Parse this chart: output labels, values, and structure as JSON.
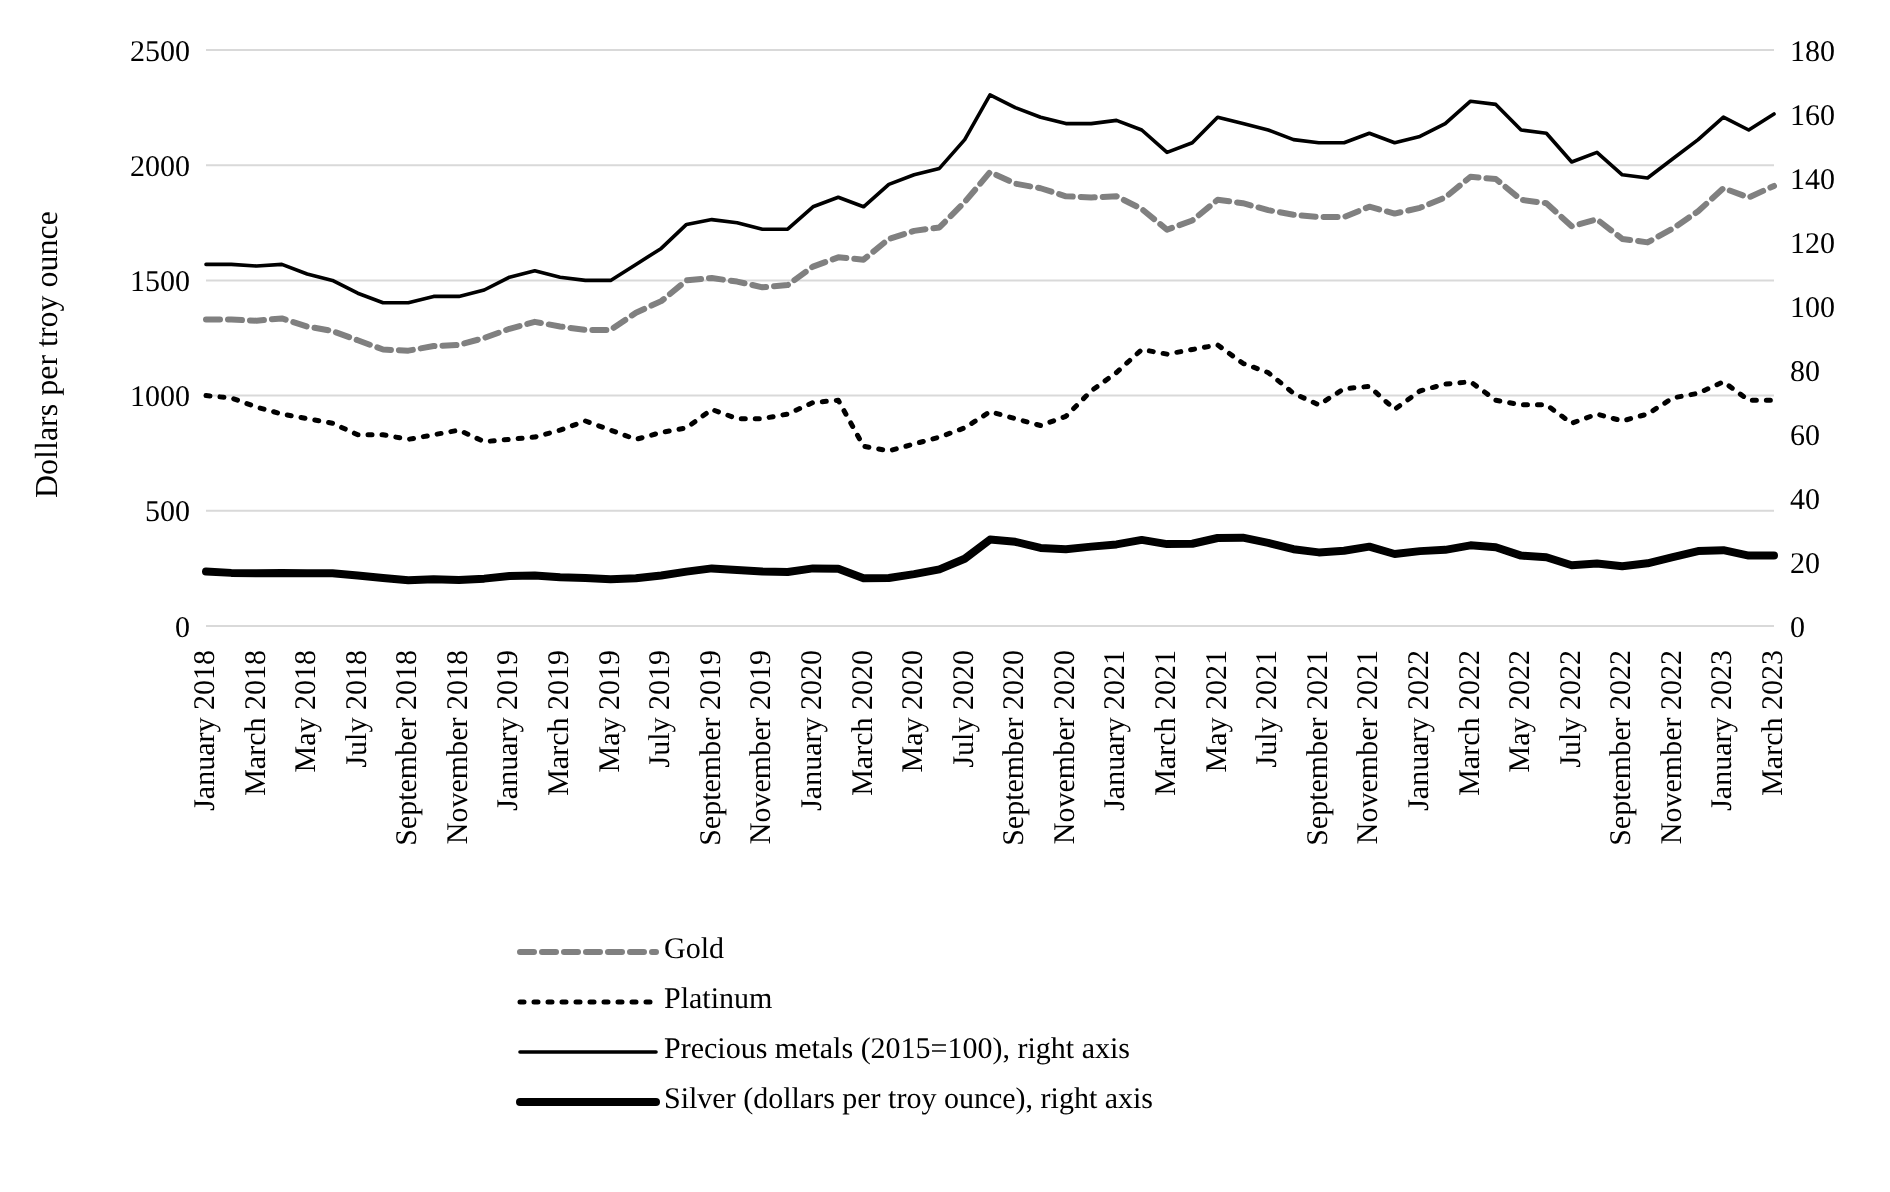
{
  "chart_data": {
    "type": "line",
    "ylabel": "Dollars per troy ounce",
    "categories": [
      "January 2018",
      null,
      "March 2018",
      null,
      "May 2018",
      null,
      "July 2018",
      null,
      "September 2018",
      null,
      "November 2018",
      null,
      "January 2019",
      null,
      "March 2019",
      null,
      "May 2019",
      null,
      "July 2019",
      null,
      "September 2019",
      null,
      "November 2019",
      null,
      "January 2020",
      null,
      "March 2020",
      null,
      "May 2020",
      null,
      "July 2020",
      null,
      "September 2020",
      null,
      "November 2020",
      null,
      "January 2021",
      null,
      "March 2021",
      null,
      "May 2021",
      null,
      "July 2021",
      null,
      "September 2021",
      null,
      "November 2021",
      null,
      "January 2022",
      null,
      "March 2022",
      null,
      "May 2022",
      null,
      "July 2022",
      null,
      "September 2022",
      null,
      "November 2022",
      null,
      "January 2023",
      null,
      "March 2023"
    ],
    "series": [
      {
        "name": "Gold",
        "color": "#808080",
        "line_style": "dashed",
        "values": [
          1330,
          1330,
          1325,
          1335,
          1300,
          1280,
          1240,
          1200,
          1195,
          1215,
          1220,
          1250,
          1290,
          1320,
          1300,
          1285,
          1285,
          1360,
          1410,
          1500,
          1510,
          1495,
          1470,
          1480,
          1560,
          1600,
          1590,
          1680,
          1715,
          1730,
          1840,
          1970,
          1920,
          1900,
          1865,
          1860,
          1865,
          1810,
          1720,
          1760,
          1850,
          1835,
          1805,
          1785,
          1775,
          1775,
          1820,
          1790,
          1815,
          1860,
          1950,
          1940,
          1850,
          1835,
          1735,
          1765,
          1680,
          1665,
          1725,
          1800,
          1900,
          1860,
          1910
        ]
      },
      {
        "name": "Platinum",
        "color": "#000000",
        "line_style": "dotted",
        "values": [
          1000,
          990,
          950,
          920,
          900,
          880,
          830,
          830,
          810,
          830,
          850,
          800,
          810,
          820,
          850,
          890,
          850,
          810,
          840,
          860,
          940,
          900,
          900,
          920,
          970,
          980,
          780,
          760,
          790,
          820,
          860,
          930,
          900,
          870,
          910,
          1020,
          1100,
          1200,
          1180,
          1200,
          1220,
          1140,
          1100,
          1010,
          960,
          1030,
          1040,
          940,
          1020,
          1050,
          1060,
          980,
          960,
          960,
          880,
          920,
          890,
          920,
          990,
          1010,
          1060,
          980,
          980
        ]
      },
      {
        "name": "Precious metals  (2015=100), right axis",
        "color": "#000000",
        "line_style": "solid",
        "axis": "y2",
        "values": [
          113,
          113,
          112.5,
          113,
          110,
          108,
          104,
          101,
          101,
          103,
          103,
          105,
          109,
          111,
          109,
          108,
          108,
          113,
          118,
          125.5,
          127,
          126,
          124,
          124,
          131,
          134,
          131,
          138,
          141,
          143,
          152,
          166,
          162,
          159,
          157,
          157,
          158,
          155,
          148,
          151,
          159,
          157,
          155,
          152,
          151,
          151,
          154,
          151,
          153,
          157,
          164,
          163,
          155,
          154,
          145,
          148,
          141,
          140,
          146,
          152,
          159,
          155,
          160
        ]
      },
      {
        "name": "Silver (dollars per troy ounce), right axis",
        "color": "#000000",
        "line_style": "solid",
        "axis": "y2",
        "values": [
          17,
          16.6,
          16.5,
          16.6,
          16.5,
          16.5,
          15.8,
          15,
          14.3,
          14.6,
          14.4,
          14.8,
          15.6,
          15.8,
          15.2,
          15,
          14.6,
          14.9,
          15.8,
          17,
          18,
          17.5,
          17,
          16.9,
          18,
          17.9,
          14.9,
          15,
          16.2,
          17.7,
          21,
          27,
          26.3,
          24.4,
          24,
          24.8,
          25.5,
          26.9,
          25.6,
          25.7,
          27.5,
          27.6,
          26,
          24,
          23,
          23.5,
          24.8,
          22.5,
          23.4,
          23.8,
          25.2,
          24.6,
          22,
          21.5,
          19,
          19.5,
          18.7,
          19.6,
          21.5,
          23.4,
          23.7,
          22,
          22
        ]
      }
    ],
    "ylim": [
      0,
      2500
    ],
    "yticks": [
      0,
      500,
      1000,
      1500,
      2000,
      2500
    ],
    "y2lim": [
      0,
      180
    ],
    "y2ticks": [
      0,
      20,
      40,
      60,
      80,
      100,
      120,
      140,
      160,
      180
    ],
    "grid": "y",
    "legend": "bottom",
    "marker": "none"
  }
}
